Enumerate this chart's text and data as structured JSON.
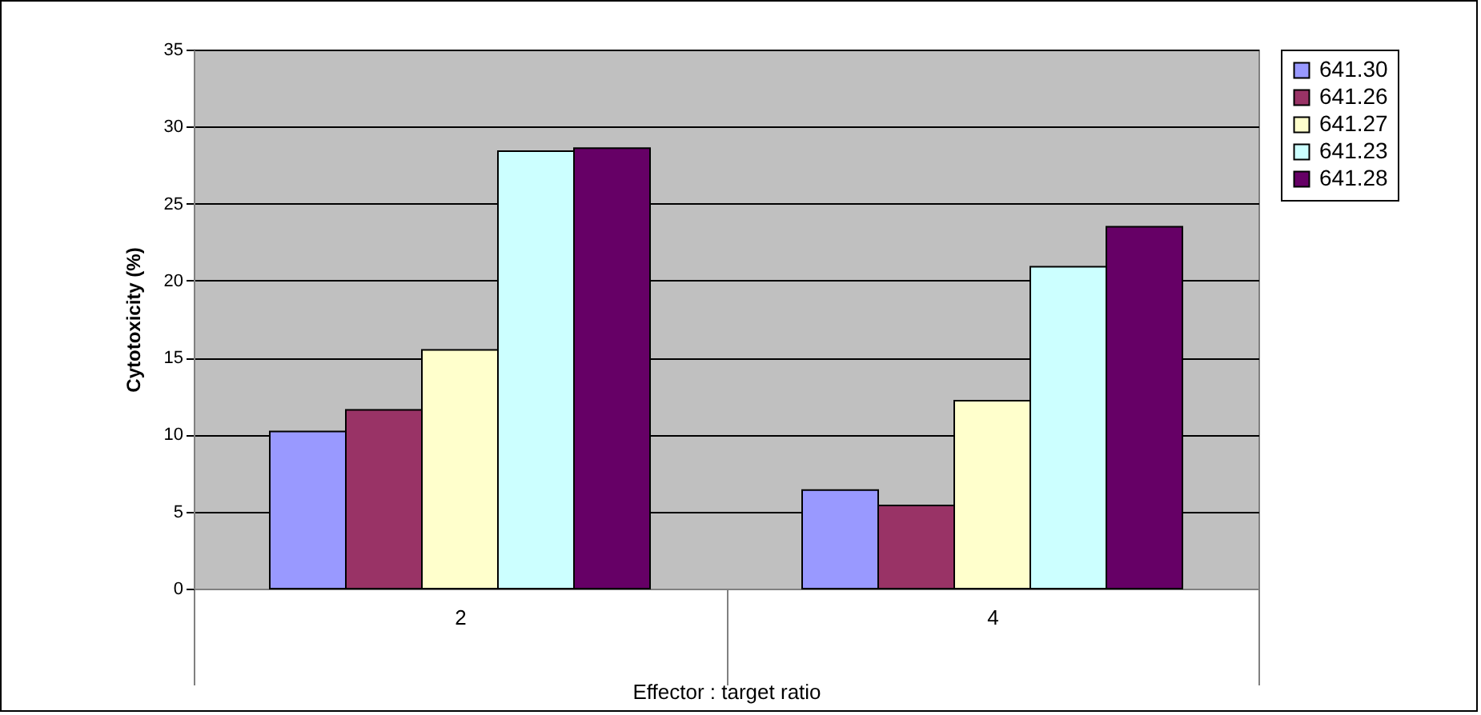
{
  "chart_data": {
    "type": "bar",
    "xlabel": "Effector : target ratio",
    "ylabel": "Cytotoxicity (%)",
    "categories": [
      "2",
      "4"
    ],
    "series": [
      {
        "name": "641.30",
        "color": "#9999ff",
        "values": [
          10.2,
          6.4
        ]
      },
      {
        "name": "641.26",
        "color": "#993366",
        "values": [
          11.6,
          5.4
        ]
      },
      {
        "name": "641.27",
        "color": "#ffffcc",
        "values": [
          15.5,
          12.2
        ]
      },
      {
        "name": "641.23",
        "color": "#ccffff",
        "values": [
          28.4,
          20.9
        ]
      },
      {
        "name": "641.28",
        "color": "#660066",
        "values": [
          28.6,
          23.5
        ]
      }
    ],
    "ylim": [
      0,
      35
    ],
    "yticks": [
      0,
      5,
      10,
      15,
      20,
      25,
      30,
      35
    ],
    "grid": "y",
    "legend": "right"
  }
}
